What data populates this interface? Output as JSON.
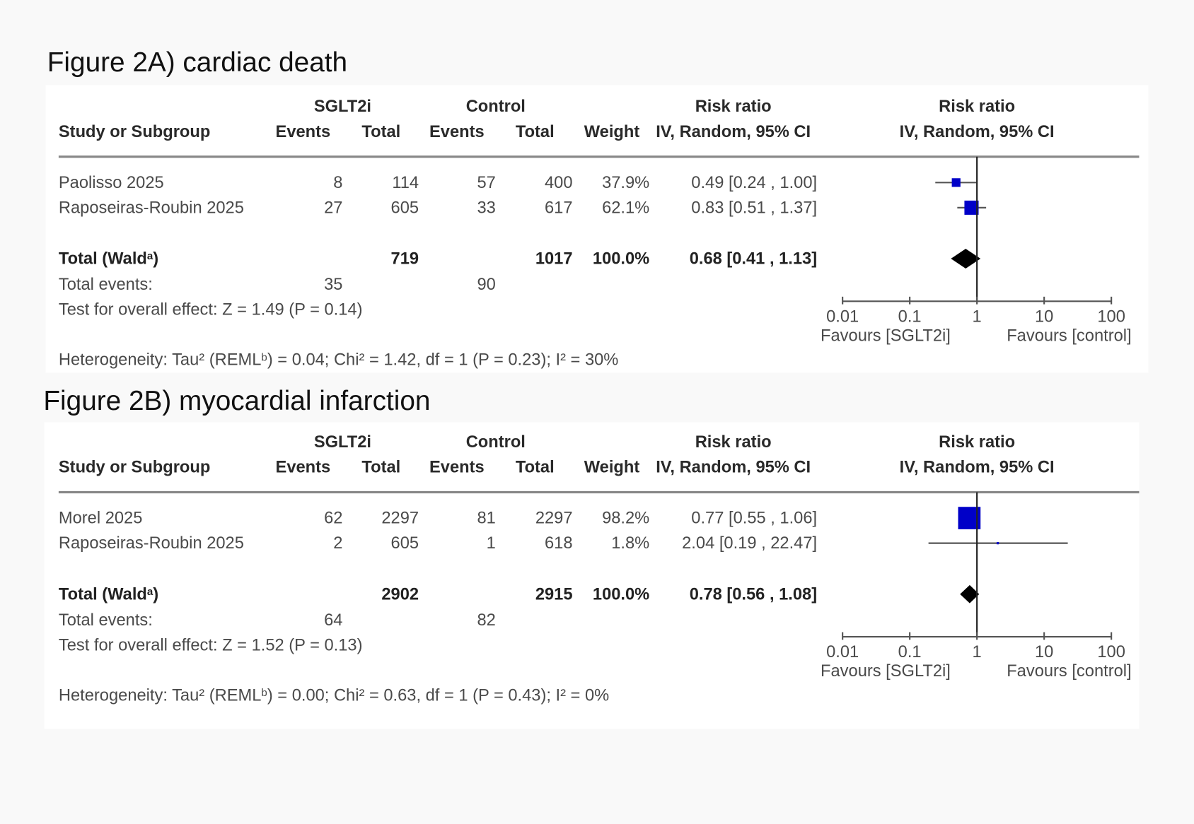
{
  "chart_data": [
    {
      "type": "forest",
      "figure_title": "Figure  2A)  cardiac death",
      "headers": {
        "group1": "SGLT2i",
        "group2": "Control",
        "study": "Study or Subgroup",
        "events": "Events",
        "total": "Total",
        "weight": "Weight",
        "effect": "Risk ratio",
        "method": "IV, Random, 95% CI"
      },
      "studies": [
        {
          "name": "Paolisso 2025",
          "e1": "8",
          "n1": "114",
          "e2": "57",
          "n2": "400",
          "weight": "37.9%",
          "ci_text": "0.49 [0.24 , 1.00]",
          "rr": 0.49,
          "lo": 0.24,
          "hi": 1.0,
          "w": 37.9
        },
        {
          "name": "Raposeiras-Roubin 2025",
          "e1": "27",
          "n1": "605",
          "e2": "33",
          "n2": "617",
          "weight": "62.1%",
          "ci_text": "0.83 [0.51 , 1.37]",
          "rr": 0.83,
          "lo": 0.51,
          "hi": 1.37,
          "w": 62.1
        }
      ],
      "total": {
        "label": "Total (Wald",
        "label_sup": "a",
        "label_end": ")",
        "n1": "719",
        "n2": "1017",
        "weight": "100.0%",
        "ci_text": "0.68 [0.41 , 1.13]",
        "rr": 0.68,
        "lo": 0.41,
        "hi": 1.13
      },
      "total_events": {
        "label": "Total events:",
        "e1": "35",
        "e2": "90"
      },
      "overall_test": "Test for overall effect: Z = 1.49 (P = 0.14)",
      "heterogeneity": {
        "pre": "Heterogeneity: Tau² (REML",
        "sup": "b",
        "post": ") = 0.04; Chi² = 1.42, df = 1 (P = 0.23); I² = 30%"
      },
      "x_axis": {
        "scale": "log",
        "ticks": [
          "0.01",
          "0.1",
          "1",
          "10",
          "100"
        ],
        "tick_values": [
          0.01,
          0.1,
          1,
          10,
          100
        ],
        "left_label": "Favours [SGLT2i]",
        "right_label": "Favours [control]"
      },
      "colors": {
        "study_marker": "#0000c8",
        "summary_diamond": "#000000"
      }
    },
    {
      "type": "forest",
      "figure_title": "Figure 2B) myocardial infarction",
      "headers": {
        "group1": "SGLT2i",
        "group2": "Control",
        "study": "Study or Subgroup",
        "events": "Events",
        "total": "Total",
        "weight": "Weight",
        "effect": "Risk ratio",
        "method": "IV, Random, 95% CI"
      },
      "studies": [
        {
          "name": "Morel  2025",
          "e1": "62",
          "n1": "2297",
          "e2": "81",
          "n2": "2297",
          "weight": "98.2%",
          "ci_text": "0.77 [0.55 , 1.06]",
          "rr": 0.77,
          "lo": 0.55,
          "hi": 1.06,
          "w": 98.2
        },
        {
          "name": "Raposeiras-Roubin 2025",
          "e1": "2",
          "n1": "605",
          "e2": "1",
          "n2": "618",
          "weight": "1.8%",
          "ci_text": "2.04 [0.19 , 22.47]",
          "rr": 2.04,
          "lo": 0.19,
          "hi": 22.47,
          "w": 1.8
        }
      ],
      "total": {
        "label": "Total (Wald",
        "label_sup": "a",
        "label_end": ")",
        "n1": "2902",
        "n2": "2915",
        "weight": "100.0%",
        "ci_text": "0.78 [0.56 , 1.08]",
        "rr": 0.78,
        "lo": 0.56,
        "hi": 1.08
      },
      "total_events": {
        "label": "Total events:",
        "e1": "64",
        "e2": "82"
      },
      "overall_test": "Test for overall effect: Z = 1.52 (P = 0.13)",
      "heterogeneity": {
        "pre": "Heterogeneity: Tau² (REML",
        "sup": "b",
        "post": ") = 0.00; Chi² = 0.63, df = 1 (P = 0.43); I² = 0%"
      },
      "x_axis": {
        "scale": "log",
        "ticks": [
          "0.01",
          "0.1",
          "1",
          "10",
          "100"
        ],
        "tick_values": [
          0.01,
          0.1,
          1,
          10,
          100
        ],
        "left_label": "Favours [SGLT2i]",
        "right_label": "Favours [control]"
      },
      "colors": {
        "study_marker": "#0000c8",
        "summary_diamond": "#000000"
      }
    }
  ]
}
